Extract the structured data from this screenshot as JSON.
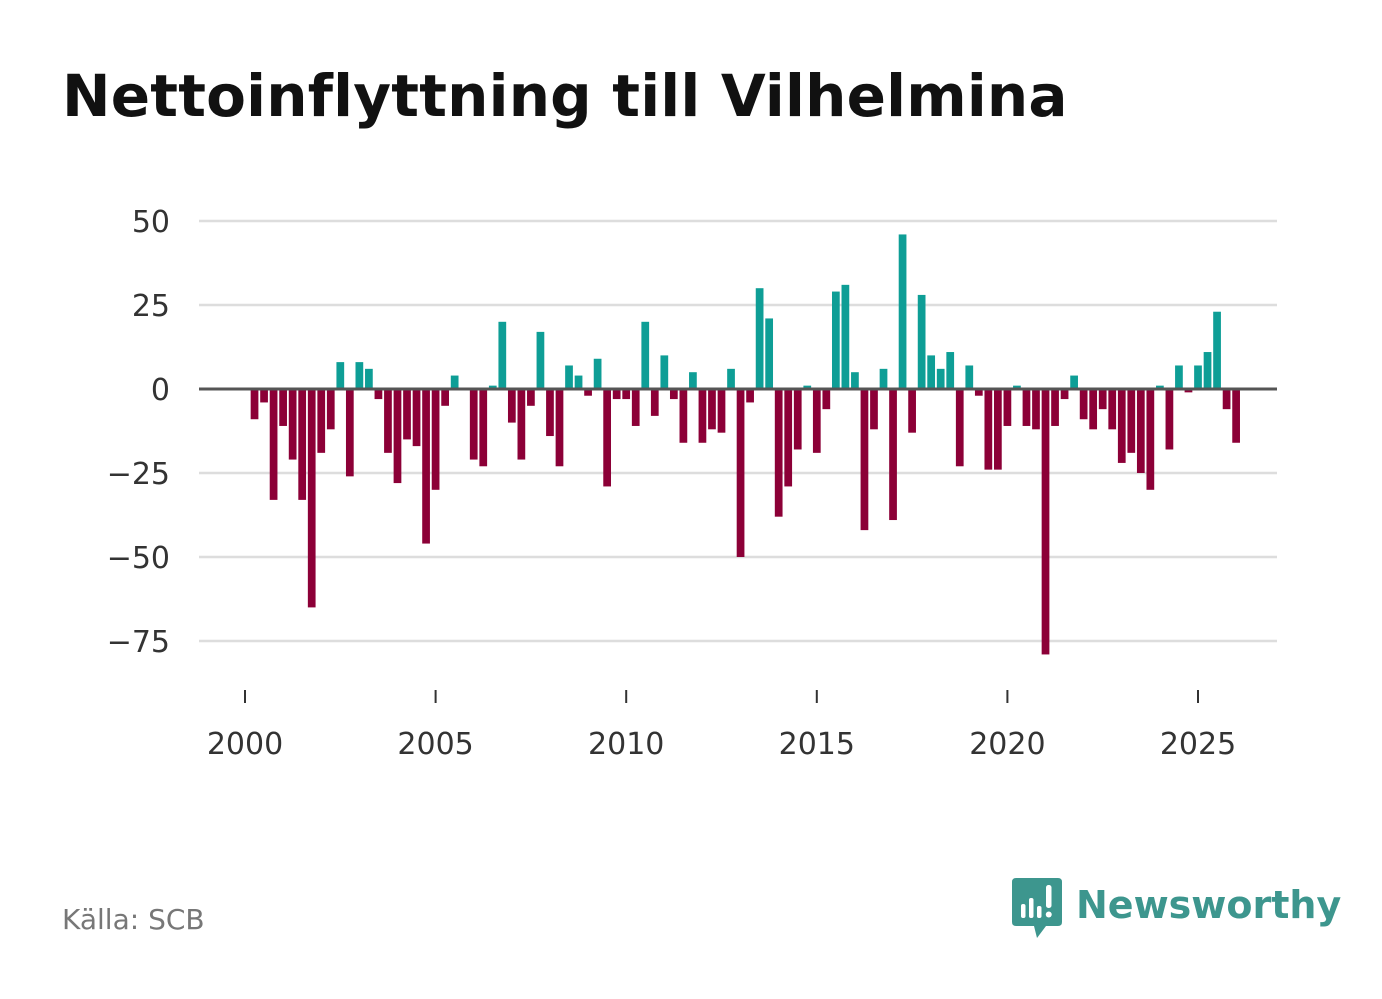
{
  "title": "Nettoinflyttning till Vilhelmina",
  "source": "Källa: SCB",
  "brand": {
    "name": "Newsworthy",
    "icon": "newsworthy-logo-icon",
    "color": "#3d968e"
  },
  "colors": {
    "positive": "#0e9e96",
    "negative": "#8c0037",
    "grid": "#dddddd",
    "zero_line": "#555555"
  },
  "chart_data": {
    "type": "bar",
    "title": "Nettoinflyttning till Vilhelmina",
    "xlabel": "",
    "ylabel": "",
    "x_start": 2000.0,
    "x_step": 0.25,
    "xlim": [
      1998.9,
      2027.1
    ],
    "ylim": [
      -84,
      57
    ],
    "y_ticks": [
      50,
      25,
      0,
      -25,
      -50,
      -75
    ],
    "y_tick_labels": [
      "50",
      "25",
      "0",
      "−25",
      "−50",
      "−75"
    ],
    "x_ticks": [
      2000,
      2005,
      2010,
      2015,
      2020,
      2025
    ],
    "x_tick_labels": [
      "2000",
      "2005",
      "2010",
      "2015",
      "2020",
      "2025"
    ],
    "grid": true,
    "values": [
      0,
      -9,
      -4,
      -33,
      -11,
      -21,
      -33,
      -65,
      -19,
      -12,
      8,
      -26,
      8,
      6,
      -3,
      -19,
      -28,
      -15,
      -17,
      -46,
      -30,
      -5,
      4,
      0,
      -21,
      -23,
      1,
      20,
      -10,
      -21,
      -5,
      17,
      -14,
      -23,
      7,
      4,
      -2,
      9,
      -29,
      -3,
      -3,
      -11,
      20,
      -8,
      10,
      -3,
      -16,
      5,
      -16,
      -12,
      -13,
      6,
      -50,
      -4,
      30,
      21,
      -38,
      -29,
      -18,
      1,
      -19,
      -6,
      29,
      31,
      5,
      -42,
      -12,
      6,
      -39,
      46,
      -13,
      28,
      10,
      6,
      11,
      -23,
      7,
      -2,
      -24,
      -24,
      -11,
      1,
      -11,
      -12,
      -79,
      -11,
      -3,
      4,
      -9,
      -12,
      -6,
      -12,
      -22,
      -19,
      -25,
      -30,
      1,
      -18,
      7,
      -1,
      7,
      11,
      23,
      -6,
      -16
    ]
  }
}
